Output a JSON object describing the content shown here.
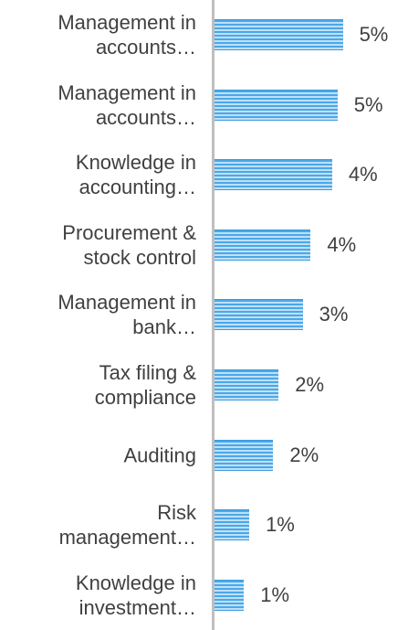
{
  "chart_data": {
    "type": "bar",
    "orientation": "horizontal",
    "categories": [
      "Management in accounts…",
      "Management in accounts…",
      "Knowledge in accounting…",
      "Procurement & stock control",
      "Management in bank…",
      "Tax filing & compliance",
      "Auditing",
      "Risk management…",
      "Knowledge in investment…"
    ],
    "values": [
      4.8,
      4.6,
      4.4,
      3.6,
      3.3,
      2.4,
      2.2,
      1.3,
      1.1
    ],
    "value_labels": [
      "5%",
      "5%",
      "4%",
      "4%",
      "3%",
      "2%",
      "2%",
      "1%",
      "1%"
    ],
    "color": "#4aa8e8",
    "xlim": [
      0,
      7
    ]
  }
}
